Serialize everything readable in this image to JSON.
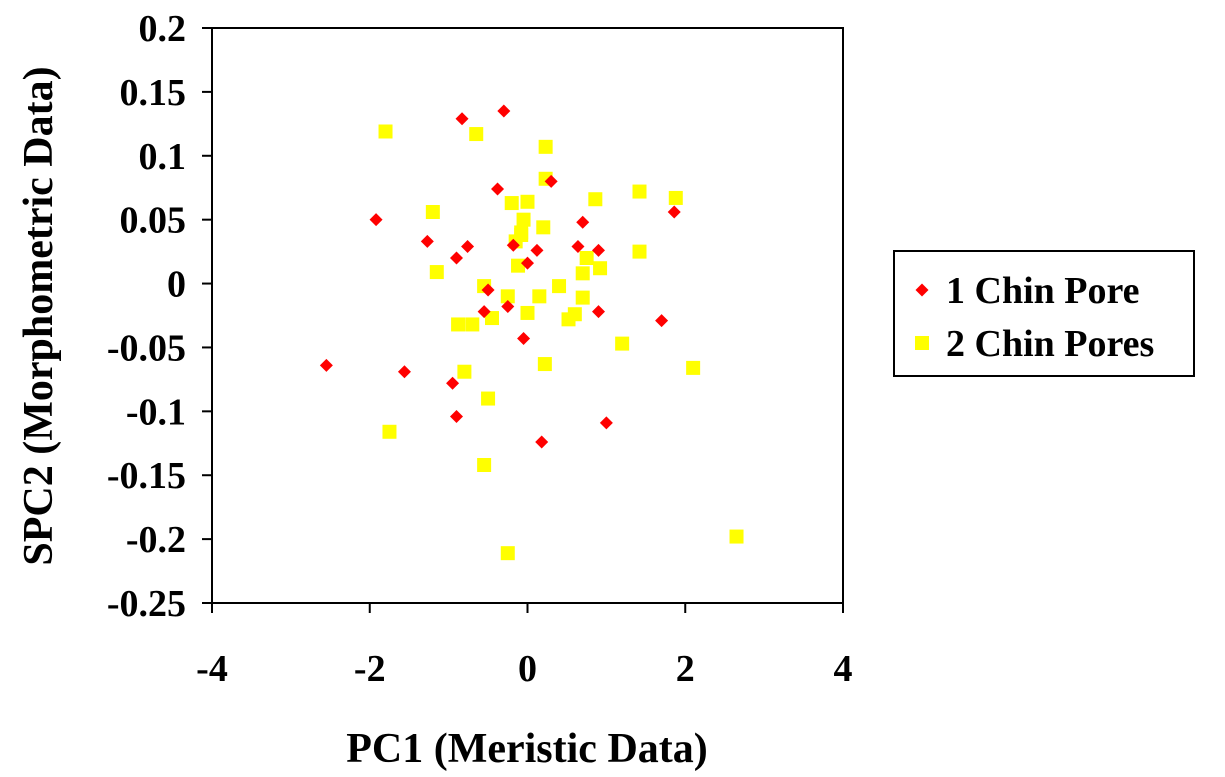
{
  "chart_data": {
    "type": "scatter",
    "xlabel": "PC1 (Meristic Data)",
    "ylabel": "SPC2 (Morphometric Data)",
    "xlim": [
      -4,
      4
    ],
    "ylim": [
      -0.25,
      0.2
    ],
    "xticks": [
      -4,
      -2,
      0,
      2,
      4
    ],
    "yticks": [
      0.2,
      0.15,
      0.1,
      0.05,
      0,
      -0.05,
      -0.1,
      -0.15,
      -0.2,
      -0.25
    ],
    "xtick_labels": [
      "-4",
      "-2",
      "0",
      "2",
      "4"
    ],
    "ytick_labels": [
      "0.2",
      "0.15",
      "0.1",
      "0.05",
      "0",
      "-0.05",
      "-0.1",
      "-0.15",
      "-0.2",
      "-0.25"
    ],
    "grid": false,
    "legend_position": "right",
    "series": [
      {
        "name": "1 Chin Pore",
        "marker": "diamond",
        "color": "#ff0000",
        "points": [
          [
            -0.83,
            0.129
          ],
          [
            -0.3,
            0.135
          ],
          [
            -0.38,
            0.074
          ],
          [
            0.3,
            0.08
          ],
          [
            -1.92,
            0.05
          ],
          [
            -1.27,
            0.033
          ],
          [
            -0.76,
            0.029
          ],
          [
            -0.9,
            0.02
          ],
          [
            0.12,
            0.026
          ],
          [
            0.0,
            0.016
          ],
          [
            0.64,
            0.029
          ],
          [
            0.7,
            0.048
          ],
          [
            0.9,
            0.026
          ],
          [
            1.86,
            0.056
          ],
          [
            -0.5,
            -0.005
          ],
          [
            -0.55,
            -0.022
          ],
          [
            -0.25,
            -0.018
          ],
          [
            -0.18,
            0.03
          ],
          [
            -0.05,
            -0.043
          ],
          [
            0.9,
            -0.022
          ],
          [
            1.7,
            -0.029
          ],
          [
            -2.55,
            -0.064
          ],
          [
            -1.56,
            -0.069
          ],
          [
            -0.95,
            -0.078
          ],
          [
            -0.9,
            -0.104
          ],
          [
            0.18,
            -0.124
          ],
          [
            1.0,
            -0.109
          ]
        ]
      },
      {
        "name": "2 Chin Pores",
        "marker": "square",
        "color": "#ffff00",
        "points": [
          [
            -1.8,
            0.119
          ],
          [
            -0.65,
            0.117
          ],
          [
            0.23,
            0.107
          ],
          [
            0.23,
            0.082
          ],
          [
            -0.2,
            0.063
          ],
          [
            0.0,
            0.064
          ],
          [
            0.86,
            0.066
          ],
          [
            1.42,
            0.072
          ],
          [
            1.88,
            0.067
          ],
          [
            -1.2,
            0.056
          ],
          [
            -0.05,
            0.05
          ],
          [
            0.2,
            0.044
          ],
          [
            -0.08,
            0.04
          ],
          [
            -0.15,
            0.033
          ],
          [
            -0.08,
            0.038
          ],
          [
            1.42,
            0.025
          ],
          [
            0.75,
            0.02
          ],
          [
            0.92,
            0.012
          ],
          [
            -1.15,
            0.009
          ],
          [
            -0.12,
            0.014
          ],
          [
            0.7,
            0.008
          ],
          [
            -0.55,
            -0.002
          ],
          [
            0.4,
            -0.002
          ],
          [
            -0.25,
            -0.01
          ],
          [
            0.15,
            -0.01
          ],
          [
            0.7,
            -0.011
          ],
          [
            -0.88,
            -0.032
          ],
          [
            -0.7,
            -0.032
          ],
          [
            -0.45,
            -0.027
          ],
          [
            0.0,
            -0.023
          ],
          [
            0.52,
            -0.028
          ],
          [
            0.6,
            -0.024
          ],
          [
            1.2,
            -0.047
          ],
          [
            -0.8,
            -0.069
          ],
          [
            0.22,
            -0.063
          ],
          [
            2.1,
            -0.066
          ],
          [
            -0.5,
            -0.09
          ],
          [
            -1.75,
            -0.116
          ],
          [
            -0.55,
            -0.142
          ],
          [
            -0.25,
            -0.211
          ],
          [
            2.65,
            -0.198
          ]
        ]
      }
    ]
  }
}
